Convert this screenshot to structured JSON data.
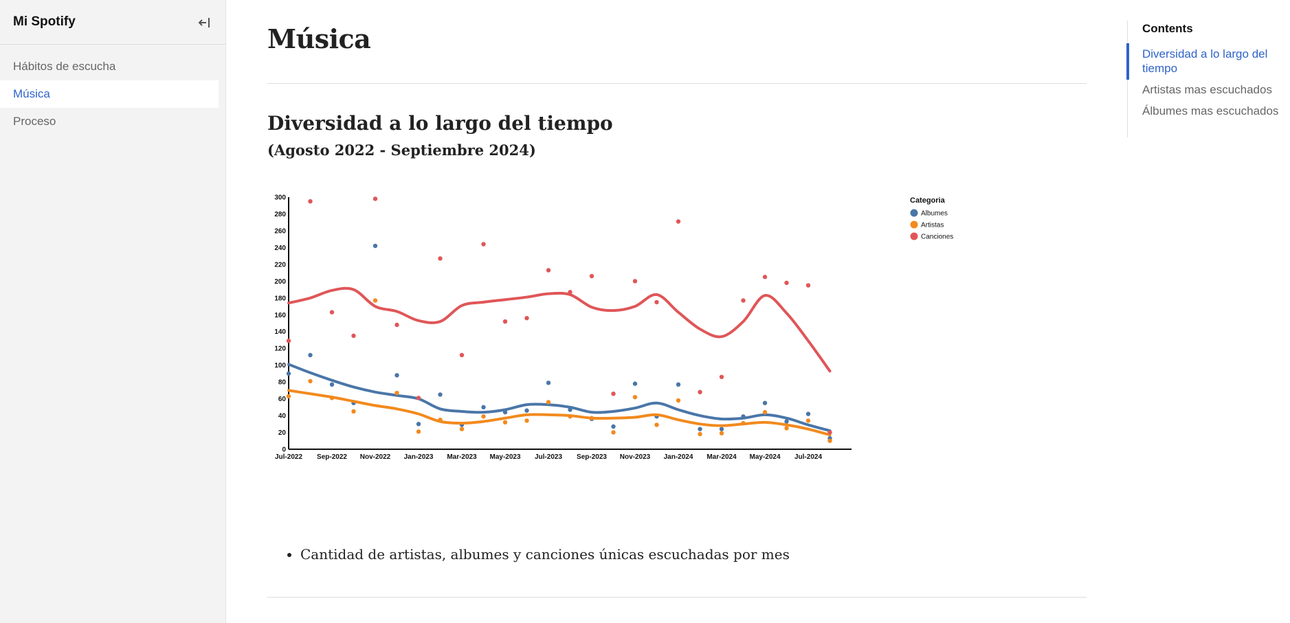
{
  "app": {
    "title": "Mi Spotify"
  },
  "sidebar": {
    "items": [
      {
        "label": "Hábitos de escucha",
        "active": false
      },
      {
        "label": "Música",
        "active": true
      },
      {
        "label": "Proceso",
        "active": false
      }
    ]
  },
  "main": {
    "title": "Música",
    "section_title": "Diversidad a lo largo del tiempo",
    "section_subtitle": "(Agosto 2022 - Septiembre 2024)",
    "bullets": [
      "Cantidad de artistas, albumes y canciones únicas escuchadas por mes"
    ]
  },
  "toc": {
    "title": "Contents",
    "items": [
      {
        "label": "Diversidad a lo largo del tiempo",
        "active": true
      },
      {
        "label": "Artistas mas escuchados",
        "active": false
      },
      {
        "label": "Álbumes mas escuchados",
        "active": false
      }
    ]
  },
  "colors": {
    "accent": "#2f63c9",
    "albumes": "#4a76a8",
    "artistas": "#f28a1e",
    "canciones": "#e05658"
  },
  "chart_data": {
    "type": "scatter",
    "x_ticks": [
      "Jul-2022",
      "Sep-2022",
      "Nov-2022",
      "Jan-2023",
      "Mar-2023",
      "May-2023",
      "Jul-2023",
      "Sep-2023",
      "Nov-2023",
      "Jan-2024",
      "Mar-2024",
      "May-2024",
      "Jul-2024"
    ],
    "y_ticks": [
      0,
      20,
      40,
      60,
      80,
      100,
      120,
      140,
      160,
      180,
      200,
      220,
      240,
      260,
      280,
      300
    ],
    "ylim": [
      0,
      300
    ],
    "xlim": [
      "2022-07-01",
      "2024-09-01"
    ],
    "legend_title": "Categoria",
    "legend_position": "top-right",
    "series": [
      {
        "name": "Albumes",
        "points": [
          [
            "2022-07",
            90
          ],
          [
            "2022-08",
            112
          ],
          [
            "2022-09",
            77
          ],
          [
            "2022-10",
            55
          ],
          [
            "2022-11",
            242
          ],
          [
            "2022-12",
            88
          ],
          [
            "2023-01",
            30
          ],
          [
            "2023-02",
            65
          ],
          [
            "2023-03",
            29
          ],
          [
            "2023-04",
            50
          ],
          [
            "2023-05",
            44
          ],
          [
            "2023-06",
            46
          ],
          [
            "2023-07",
            79
          ],
          [
            "2023-08",
            47
          ],
          [
            "2023-09",
            36
          ],
          [
            "2023-10",
            27
          ],
          [
            "2023-11",
            78
          ],
          [
            "2023-12",
            39
          ],
          [
            "2024-01",
            77
          ],
          [
            "2024-02",
            24
          ],
          [
            "2024-03",
            24
          ],
          [
            "2024-04",
            39
          ],
          [
            "2024-05",
            55
          ],
          [
            "2024-06",
            33
          ],
          [
            "2024-07",
            42
          ],
          [
            "2024-08",
            13
          ]
        ],
        "trend": [
          [
            "2022-07",
            101
          ],
          [
            "2022-08",
            91
          ],
          [
            "2022-09",
            82
          ],
          [
            "2022-10",
            74
          ],
          [
            "2022-11",
            68
          ],
          [
            "2022-12",
            64
          ],
          [
            "2023-01",
            60
          ],
          [
            "2023-02",
            48
          ],
          [
            "2023-03",
            45
          ],
          [
            "2023-04",
            44
          ],
          [
            "2023-05",
            47
          ],
          [
            "2023-06",
            53
          ],
          [
            "2023-07",
            53
          ],
          [
            "2023-08",
            50
          ],
          [
            "2023-09",
            44
          ],
          [
            "2023-10",
            45
          ],
          [
            "2023-11",
            49
          ],
          [
            "2023-12",
            55
          ],
          [
            "2024-01",
            47
          ],
          [
            "2024-02",
            40
          ],
          [
            "2024-03",
            36
          ],
          [
            "2024-04",
            37
          ],
          [
            "2024-05",
            41
          ],
          [
            "2024-06",
            37
          ],
          [
            "2024-07",
            29
          ],
          [
            "2024-08",
            22
          ]
        ]
      },
      {
        "name": "Artistas",
        "points": [
          [
            "2022-07",
            63
          ],
          [
            "2022-08",
            81
          ],
          [
            "2022-09",
            61
          ],
          [
            "2022-10",
            45
          ],
          [
            "2022-11",
            177
          ],
          [
            "2022-12",
            67
          ],
          [
            "2023-01",
            21
          ],
          [
            "2023-02",
            35
          ],
          [
            "2023-03",
            24
          ],
          [
            "2023-04",
            39
          ],
          [
            "2023-05",
            32
          ],
          [
            "2023-06",
            34
          ],
          [
            "2023-07",
            56
          ],
          [
            "2023-08",
            39
          ],
          [
            "2023-09",
            37
          ],
          [
            "2023-10",
            20
          ],
          [
            "2023-11",
            62
          ],
          [
            "2023-12",
            29
          ],
          [
            "2024-01",
            58
          ],
          [
            "2024-02",
            18
          ],
          [
            "2024-03",
            19
          ],
          [
            "2024-04",
            31
          ],
          [
            "2024-05",
            44
          ],
          [
            "2024-06",
            25
          ],
          [
            "2024-07",
            34
          ],
          [
            "2024-08",
            10
          ]
        ],
        "trend": [
          [
            "2022-07",
            70
          ],
          [
            "2022-08",
            66
          ],
          [
            "2022-09",
            62
          ],
          [
            "2022-10",
            57
          ],
          [
            "2022-11",
            52
          ],
          [
            "2022-12",
            48
          ],
          [
            "2023-01",
            42
          ],
          [
            "2023-02",
            33
          ],
          [
            "2023-03",
            31
          ],
          [
            "2023-04",
            33
          ],
          [
            "2023-05",
            37
          ],
          [
            "2023-06",
            41
          ],
          [
            "2023-07",
            41
          ],
          [
            "2023-08",
            40
          ],
          [
            "2023-09",
            37
          ],
          [
            "2023-10",
            37
          ],
          [
            "2023-11",
            38
          ],
          [
            "2023-12",
            41
          ],
          [
            "2024-01",
            35
          ],
          [
            "2024-02",
            30
          ],
          [
            "2024-03",
            28
          ],
          [
            "2024-04",
            30
          ],
          [
            "2024-05",
            32
          ],
          [
            "2024-06",
            29
          ],
          [
            "2024-07",
            24
          ],
          [
            "2024-08",
            17
          ]
        ]
      },
      {
        "name": "Canciones",
        "points": [
          [
            "2022-07",
            129
          ],
          [
            "2022-08",
            295
          ],
          [
            "2022-09",
            163
          ],
          [
            "2022-10",
            135
          ],
          [
            "2022-11",
            298
          ],
          [
            "2022-12",
            148
          ],
          [
            "2023-01",
            61
          ],
          [
            "2023-02",
            227
          ],
          [
            "2023-03",
            112
          ],
          [
            "2023-04",
            244
          ],
          [
            "2023-05",
            152
          ],
          [
            "2023-06",
            156
          ],
          [
            "2023-07",
            213
          ],
          [
            "2023-08",
            187
          ],
          [
            "2023-09",
            206
          ],
          [
            "2023-10",
            66
          ],
          [
            "2023-11",
            200
          ],
          [
            "2023-12",
            175
          ],
          [
            "2024-01",
            271
          ],
          [
            "2024-02",
            68
          ],
          [
            "2024-03",
            86
          ],
          [
            "2024-04",
            177
          ],
          [
            "2024-05",
            205
          ],
          [
            "2024-06",
            198
          ],
          [
            "2024-07",
            195
          ],
          [
            "2024-08",
            20
          ]
        ],
        "trend": [
          [
            "2022-07",
            174
          ],
          [
            "2022-08",
            180
          ],
          [
            "2022-09",
            189
          ],
          [
            "2022-10",
            190
          ],
          [
            "2022-11",
            170
          ],
          [
            "2022-12",
            164
          ],
          [
            "2023-01",
            153
          ],
          [
            "2023-02",
            152
          ],
          [
            "2023-03",
            171
          ],
          [
            "2023-04",
            175
          ],
          [
            "2023-05",
            178
          ],
          [
            "2023-06",
            181
          ],
          [
            "2023-07",
            185
          ],
          [
            "2023-08",
            184
          ],
          [
            "2023-09",
            169
          ],
          [
            "2023-10",
            165
          ],
          [
            "2023-11",
            170
          ],
          [
            "2023-12",
            184
          ],
          [
            "2024-01",
            163
          ],
          [
            "2024-02",
            143
          ],
          [
            "2024-03",
            134
          ],
          [
            "2024-04",
            152
          ],
          [
            "2024-05",
            183
          ],
          [
            "2024-06",
            162
          ],
          [
            "2024-07",
            129
          ],
          [
            "2024-08",
            93
          ]
        ]
      }
    ]
  }
}
